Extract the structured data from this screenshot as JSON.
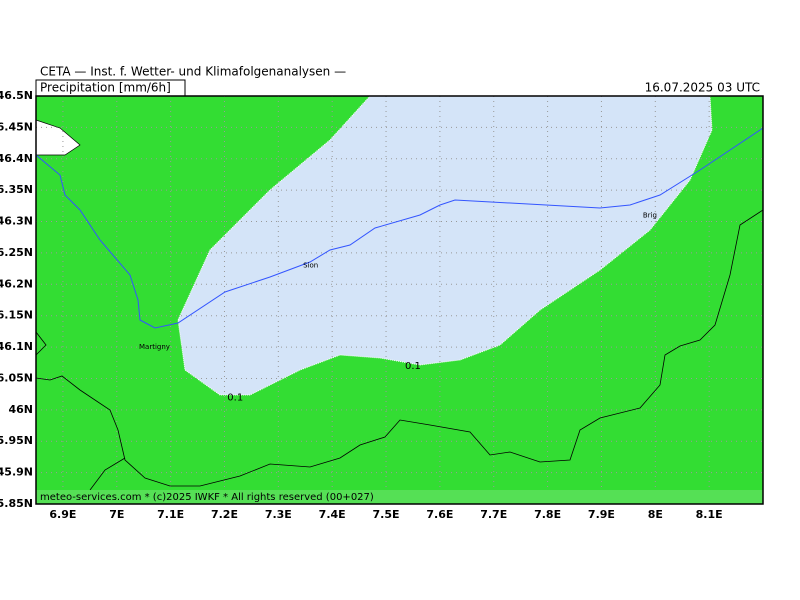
{
  "header": {
    "title": "CETA — Inst. f. Wetter- und Klimafolgenanalysen —",
    "product": "Precipitation [mm/6h]",
    "date": "16.07.2025 03 UTC"
  },
  "map": {
    "lon_range": [
      6.85,
      8.2
    ],
    "lat_range": [
      45.85,
      46.5
    ],
    "lon_ticks": [
      {
        "value": 6.9,
        "label": "6.9E"
      },
      {
        "value": 7.0,
        "label": "7E"
      },
      {
        "value": 7.1,
        "label": "7.1E"
      },
      {
        "value": 7.2,
        "label": "7.2E"
      },
      {
        "value": 7.3,
        "label": "7.3E"
      },
      {
        "value": 7.4,
        "label": "7.4E"
      },
      {
        "value": 7.5,
        "label": "7.5E"
      },
      {
        "value": 7.6,
        "label": "7.6E"
      },
      {
        "value": 7.7,
        "label": "7.7E"
      },
      {
        "value": 7.8,
        "label": "7.8E"
      },
      {
        "value": 7.9,
        "label": "7.9E"
      },
      {
        "value": 8.0,
        "label": "8E"
      },
      {
        "value": 8.1,
        "label": "8.1E"
      }
    ],
    "lat_ticks": [
      {
        "value": 46.5,
        "label": "46.5N"
      },
      {
        "value": 46.45,
        "label": "46.45N"
      },
      {
        "value": 46.4,
        "label": "46.4N"
      },
      {
        "value": 46.35,
        "label": "46.35N"
      },
      {
        "value": 46.3,
        "label": "46.3N"
      },
      {
        "value": 46.25,
        "label": "46.25N"
      },
      {
        "value": 46.2,
        "label": "46.2N"
      },
      {
        "value": 46.15,
        "label": "46.15N"
      },
      {
        "value": 46.1,
        "label": "46.1N"
      },
      {
        "value": 46.05,
        "label": "46.05N"
      },
      {
        "value": 46.0,
        "label": "46N"
      },
      {
        "value": 45.95,
        "label": "45.95N"
      },
      {
        "value": 45.9,
        "label": "45.9N"
      },
      {
        "value": 45.85,
        "label": "45.85N"
      }
    ],
    "places": [
      {
        "name": "Martigny",
        "lon": 7.07,
        "lat": 46.1
      },
      {
        "name": "Sion",
        "lon": 7.36,
        "lat": 46.23
      },
      {
        "name": "Brig",
        "lon": 7.99,
        "lat": 46.31
      }
    ],
    "contour_labels": [
      {
        "label": "0.1",
        "lon": 7.22,
        "lat": 46.02
      },
      {
        "label": "0.1",
        "lon": 7.55,
        "lat": 46.07
      }
    ]
  },
  "footer": "meteo-services.com * (c)2025 IWKF * All rights reserved (00+027)"
}
